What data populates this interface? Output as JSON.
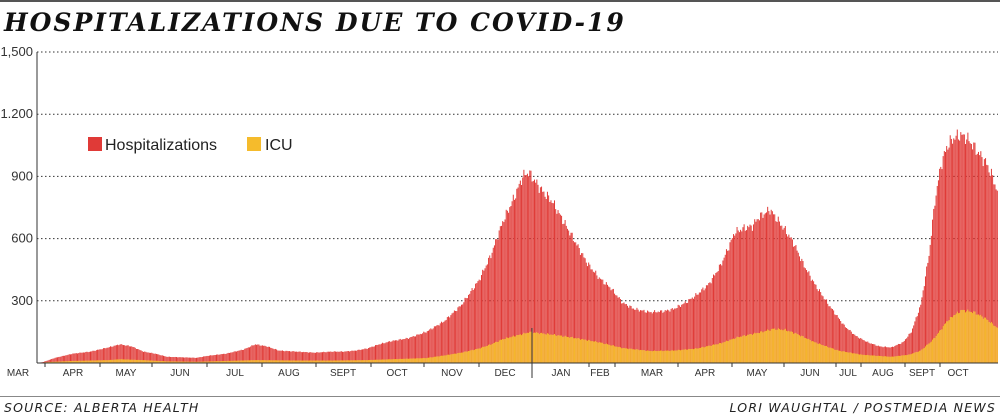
{
  "title": "HOSPITALIZATIONS DUE TO COVID-19",
  "source": "SOURCE: ALBERTA HEALTH",
  "credit": "LORI WAUGHTAL / POSTMEDIA NEWS",
  "colors": {
    "hospitalizations": "#e03a37",
    "icu": "#f5bb2c",
    "grid": "#333333",
    "axis": "#333333"
  },
  "chart_data": {
    "type": "bar",
    "title": "HOSPITALIZATIONS DUE TO COVID-19",
    "xlabel": "",
    "ylabel": "",
    "ylim": [
      0,
      1500
    ],
    "yticks": [
      300,
      600,
      900,
      1200,
      1500
    ],
    "ytick_labels": [
      "300",
      "600",
      "900",
      "1.200",
      "1,500"
    ],
    "grid": "horizontal dotted",
    "legend_position": "top-left",
    "stacked": "overlaid",
    "months": [
      "MAR",
      "APR",
      "MAY",
      "JUN",
      "JUL",
      "AUG",
      "SEPT",
      "OCT",
      "NOV",
      "DEC",
      "JAN",
      "FEB",
      "MAR",
      "APR",
      "MAY",
      "JUN",
      "JUL",
      "AUG",
      "SEPT",
      "OCT"
    ],
    "series": [
      {
        "name": "Hospitalizations",
        "color": "#e03a37",
        "keypoints": [
          [
            0,
            0
          ],
          [
            5,
            5
          ],
          [
            15,
            25
          ],
          [
            30,
            45
          ],
          [
            45,
            55
          ],
          [
            60,
            75
          ],
          [
            70,
            90
          ],
          [
            80,
            80
          ],
          [
            90,
            55
          ],
          [
            100,
            45
          ],
          [
            110,
            30
          ],
          [
            120,
            28
          ],
          [
            135,
            25
          ],
          [
            145,
            35
          ],
          [
            160,
            45
          ],
          [
            175,
            65
          ],
          [
            185,
            90
          ],
          [
            195,
            80
          ],
          [
            205,
            60
          ],
          [
            220,
            55
          ],
          [
            235,
            50
          ],
          [
            250,
            55
          ],
          [
            260,
            55
          ],
          [
            270,
            60
          ],
          [
            280,
            70
          ],
          [
            290,
            90
          ],
          [
            300,
            105
          ],
          [
            315,
            120
          ],
          [
            330,
            150
          ],
          [
            345,
            200
          ],
          [
            360,
            280
          ],
          [
            375,
            400
          ],
          [
            385,
            520
          ],
          [
            395,
            680
          ],
          [
            405,
            800
          ],
          [
            412,
            900
          ],
          [
            417,
            920
          ],
          [
            422,
            880
          ],
          [
            430,
            820
          ],
          [
            437,
            780
          ],
          [
            447,
            680
          ],
          [
            457,
            580
          ],
          [
            467,
            480
          ],
          [
            477,
            410
          ],
          [
            487,
            360
          ],
          [
            497,
            290
          ],
          [
            507,
            260
          ],
          [
            520,
            245
          ],
          [
            532,
            250
          ],
          [
            540,
            260
          ],
          [
            550,
            290
          ],
          [
            560,
            330
          ],
          [
            570,
            380
          ],
          [
            580,
            470
          ],
          [
            587,
            560
          ],
          [
            592,
            630
          ],
          [
            600,
            650
          ],
          [
            607,
            660
          ],
          [
            612,
            700
          ],
          [
            617,
            720
          ],
          [
            622,
            740
          ],
          [
            627,
            700
          ],
          [
            635,
            640
          ],
          [
            642,
            580
          ],
          [
            650,
            480
          ],
          [
            660,
            380
          ],
          [
            672,
            280
          ],
          [
            685,
            180
          ],
          [
            695,
            130
          ],
          [
            705,
            100
          ],
          [
            715,
            80
          ],
          [
            725,
            75
          ],
          [
            735,
            100
          ],
          [
            742,
            150
          ],
          [
            750,
            280
          ],
          [
            757,
            520
          ],
          [
            762,
            780
          ],
          [
            767,
            950
          ],
          [
            772,
            1040
          ],
          [
            777,
            1080
          ],
          [
            783,
            1100
          ],
          [
            788,
            1090
          ],
          [
            793,
            1060
          ],
          [
            798,
            1020
          ],
          [
            805,
            970
          ],
          [
            810,
            910
          ],
          [
            815,
            830
          ]
        ]
      },
      {
        "name": "ICU",
        "color": "#f5bb2c",
        "keypoints": [
          [
            0,
            0
          ],
          [
            10,
            5
          ],
          [
            30,
            10
          ],
          [
            60,
            14
          ],
          [
            70,
            18
          ],
          [
            90,
            14
          ],
          [
            110,
            8
          ],
          [
            135,
            6
          ],
          [
            160,
            10
          ],
          [
            185,
            14
          ],
          [
            220,
            12
          ],
          [
            250,
            12
          ],
          [
            280,
            14
          ],
          [
            300,
            18
          ],
          [
            330,
            24
          ],
          [
            345,
            36
          ],
          [
            360,
            50
          ],
          [
            375,
            70
          ],
          [
            385,
            90
          ],
          [
            395,
            115
          ],
          [
            405,
            130
          ],
          [
            412,
            140
          ],
          [
            417,
            148
          ],
          [
            425,
            145
          ],
          [
            440,
            135
          ],
          [
            457,
            120
          ],
          [
            477,
            100
          ],
          [
            497,
            72
          ],
          [
            520,
            58
          ],
          [
            540,
            60
          ],
          [
            560,
            70
          ],
          [
            580,
            95
          ],
          [
            595,
            125
          ],
          [
            607,
            140
          ],
          [
            615,
            150
          ],
          [
            625,
            165
          ],
          [
            635,
            160
          ],
          [
            645,
            140
          ],
          [
            660,
            100
          ],
          [
            680,
            60
          ],
          [
            700,
            40
          ],
          [
            725,
            30
          ],
          [
            740,
            40
          ],
          [
            750,
            60
          ],
          [
            760,
            110
          ],
          [
            767,
            160
          ],
          [
            772,
            200
          ],
          [
            778,
            230
          ],
          [
            785,
            255
          ],
          [
            795,
            245
          ],
          [
            805,
            215
          ],
          [
            815,
            170
          ]
        ]
      }
    ]
  }
}
